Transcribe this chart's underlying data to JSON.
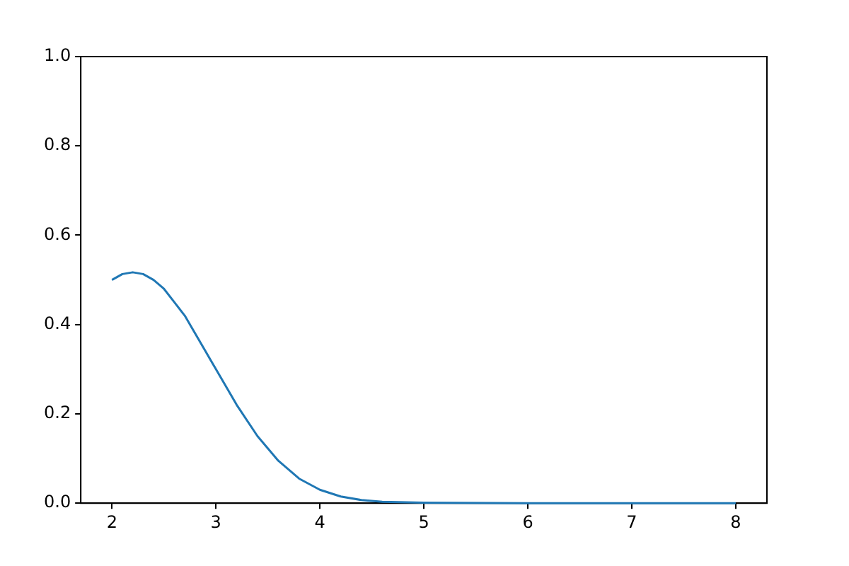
{
  "chart_data": {
    "type": "line",
    "x": [
      2,
      2.1,
      2.2,
      2.3,
      2.4,
      2.5,
      2.6,
      2.7,
      2.8,
      2.9,
      3,
      3.2,
      3.4,
      3.6,
      3.8,
      4,
      4.2,
      4.4,
      4.6,
      5,
      6,
      7,
      8
    ],
    "series": [
      {
        "color": "#1f77b4",
        "values": [
          0.5,
          0.513,
          0.517,
          0.513,
          0.5,
          0.48,
          0.45,
          0.42,
          0.38,
          0.34,
          0.3,
          0.22,
          0.15,
          0.095,
          0.055,
          0.03,
          0.015,
          0.007,
          0.003,
          0.001,
          0,
          0,
          0
        ]
      }
    ],
    "xlim": [
      1.7,
      8.3
    ],
    "xticks": [
      2,
      3,
      4,
      5,
      6,
      7,
      8
    ],
    "ylim": [
      0,
      1
    ],
    "yticks": [
      {
        "value": 0,
        "label": "0.0"
      },
      0.2,
      0.4,
      0.6,
      0.8,
      {
        "value": 1,
        "label": "1.0"
      }
    ],
    "grid": false,
    "legend": false,
    "marker": "none",
    "line_style": "solid"
  }
}
